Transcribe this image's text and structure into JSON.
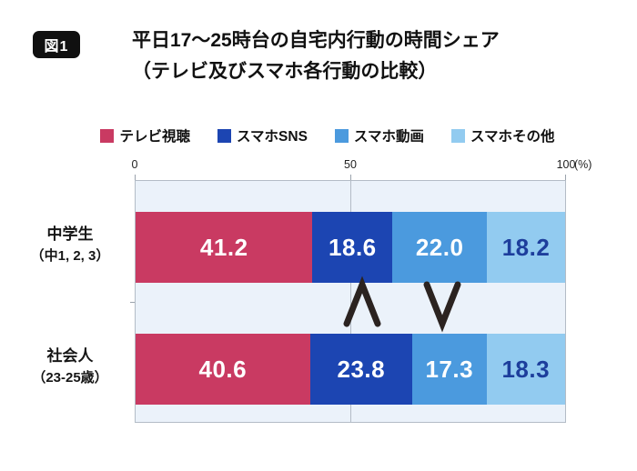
{
  "figure_badge": "図1",
  "title": {
    "line1": "平日17〜25時台の自宅内行動の時間シェア",
    "line2": "（テレビ及びスマホ各行動の比較）"
  },
  "legend": {
    "items": [
      {
        "label": "テレビ視聴",
        "color": "#c93a62"
      },
      {
        "label": "スマホSNS",
        "color": "#1c45b2"
      },
      {
        "label": "スマホ動画",
        "color": "#4b9ade"
      },
      {
        "label": "スマホその他",
        "color": "#92cbf0"
      }
    ]
  },
  "axis": {
    "tick_labels": [
      "0",
      "50",
      "100"
    ],
    "unit_label": "(%)"
  },
  "chart_data": {
    "type": "bar",
    "orientation": "horizontal",
    "stacked": true,
    "title": "平日17〜25時台の自宅内行動の時間シェア（テレビ及びスマホ各行動の比較）",
    "xlabel": "%",
    "xlim": [
      0,
      100
    ],
    "grid": "vertical line at 50",
    "legend_position": "top",
    "categories": [
      "中学生（中1, 2, 3）",
      "社会人（23-25歳）"
    ],
    "category_lines": [
      [
        "中学生",
        "（中1, 2, 3）"
      ],
      [
        "社会人",
        "（23-25歳）"
      ]
    ],
    "series": [
      {
        "name": "テレビ視聴",
        "color": "#c93a62",
        "values": [
          41.2,
          40.6
        ],
        "value_labels": [
          "41.2",
          "40.6"
        ],
        "label_color": "#ffffff"
      },
      {
        "name": "スマホSNS",
        "color": "#1c45b2",
        "values": [
          18.6,
          23.8
        ],
        "value_labels": [
          "18.6",
          "23.8"
        ],
        "label_color": "#ffffff"
      },
      {
        "name": "スマホ動画",
        "color": "#4b9ade",
        "values": [
          22.0,
          17.3
        ],
        "value_labels": [
          "22.0",
          "17.3"
        ],
        "label_color": "#ffffff"
      },
      {
        "name": "スマホその他",
        "color": "#92cbf0",
        "values": [
          18.2,
          18.3
        ],
        "value_labels": [
          "18.2",
          "18.3"
        ],
        "label_color": "#1d3e9c"
      }
    ],
    "annotations": [
      {
        "glyph": "∧",
        "between_series": "スマホSNS",
        "comparison": "18.6 < 23.8"
      },
      {
        "glyph": "∨",
        "between_series": "スマホ動画",
        "comparison": "22.0 > 17.3"
      }
    ],
    "plot_background": "#ebf2fa",
    "grid_color": "#b3bcc6",
    "annotation_color": "#2b2320"
  }
}
